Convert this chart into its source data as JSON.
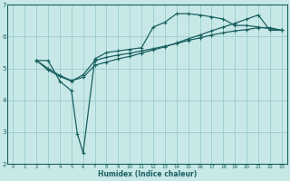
{
  "xlabel": "Humidex (Indice chaleur)",
  "bg_color": "#c8e8e8",
  "grid_color": "#99cccc",
  "line_color": "#1a6060",
  "spine_color": "#1a6060",
  "xlim": [
    -0.5,
    23.5
  ],
  "ylim": [
    2,
    7
  ],
  "yticks": [
    2,
    3,
    4,
    5,
    6,
    7
  ],
  "xticks": [
    0,
    1,
    2,
    3,
    4,
    5,
    6,
    7,
    8,
    9,
    10,
    11,
    12,
    13,
    14,
    15,
    16,
    17,
    18,
    19,
    20,
    21,
    22,
    23
  ],
  "curve1_x": [
    2,
    3,
    4,
    5,
    5.5,
    6,
    7,
    8,
    9,
    10,
    11,
    12,
    13,
    14,
    15,
    16,
    17,
    18,
    19,
    20,
    21,
    22,
    23
  ],
  "curve1_y": [
    5.25,
    5.25,
    4.6,
    4.3,
    2.95,
    2.35,
    5.3,
    5.5,
    5.55,
    5.6,
    5.65,
    6.3,
    6.45,
    6.72,
    6.72,
    6.68,
    6.62,
    6.55,
    6.35,
    6.35,
    6.3,
    6.25,
    6.2
  ],
  "curve2_x": [
    2,
    3,
    4,
    5,
    6,
    7,
    8,
    9,
    10,
    11,
    12,
    13,
    14,
    15,
    16,
    17,
    18,
    19,
    20,
    21,
    22,
    23
  ],
  "curve2_y": [
    5.25,
    4.95,
    4.75,
    4.6,
    4.8,
    5.25,
    5.35,
    5.42,
    5.48,
    5.55,
    5.62,
    5.7,
    5.78,
    5.88,
    5.96,
    6.05,
    6.12,
    6.18,
    6.22,
    6.28,
    6.28,
    6.2
  ],
  "curve3_x": [
    2,
    3,
    4,
    5,
    6,
    7,
    8,
    9,
    10,
    11,
    12,
    13,
    14,
    15,
    16,
    17,
    18,
    19,
    20,
    21,
    22,
    23
  ],
  "curve3_y": [
    5.25,
    5.0,
    4.78,
    4.62,
    4.72,
    5.1,
    5.2,
    5.3,
    5.38,
    5.48,
    5.58,
    5.68,
    5.8,
    5.93,
    6.05,
    6.18,
    6.3,
    6.42,
    6.55,
    6.68,
    6.2,
    6.2
  ]
}
